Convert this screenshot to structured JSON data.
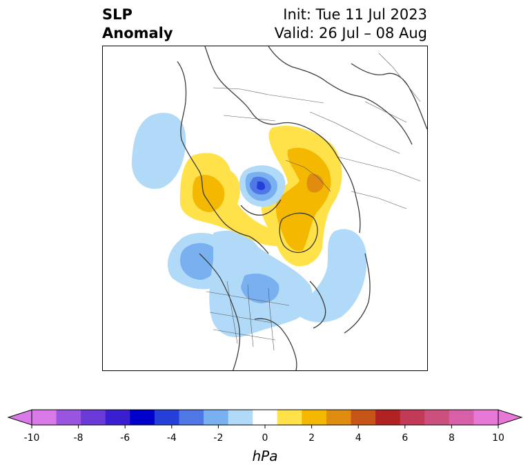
{
  "title": {
    "left_line1": "SLP",
    "left_line2": "Anomaly",
    "right_line1": "Init: Tue 11 Jul 2023",
    "right_line2": "Valid: 26 Jul – 08 Aug"
  },
  "colorbar": {
    "units": "hPa",
    "tick_labels": [
      "-10",
      "-8",
      "-6",
      "-4",
      "-2",
      "0",
      "2",
      "4",
      "6",
      "8",
      "10"
    ],
    "levels": [
      -10,
      -9,
      -8,
      -7,
      -6,
      -5,
      -4,
      -3,
      -2,
      -1,
      1,
      2,
      3,
      4,
      5,
      6,
      7,
      8,
      9,
      10
    ],
    "colors": [
      "#d97ae8",
      "#9a55e0",
      "#6a3ad9",
      "#3a1fd0",
      "#0000cc",
      "#2440d8",
      "#4f78e6",
      "#78b0f0",
      "#b0daf8",
      "#ffffff",
      "#ffe14a",
      "#f5b800",
      "#e08c10",
      "#c85518",
      "#b32222",
      "#c23a55",
      "#cc507e",
      "#d860a8",
      "#e778d8"
    ],
    "extend_below_color": "#d97ae8",
    "extend_above_color": "#e778d8"
  },
  "map": {
    "projection": "north-polar-stereographic",
    "anomaly_colors": {
      "neg_1": "#b0daf8",
      "neg_2": "#78b0f0",
      "neg_3": "#4f78e6",
      "neg_4": "#2440d8",
      "pos_1": "#ffe14a",
      "pos_2": "#f5b800",
      "pos_3": "#e08c10"
    }
  }
}
